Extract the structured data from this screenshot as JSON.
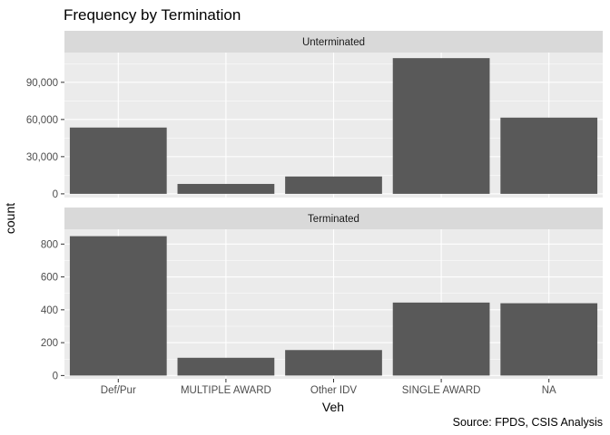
{
  "chart_data": {
    "type": "bar",
    "title": "Frequency by Termination",
    "xlabel": "Veh",
    "ylabel": "count",
    "caption": "Source: FPDS, CSIS Analysis",
    "categories": [
      "Def/Pur",
      "MULTIPLE AWARD",
      "Other IDV",
      "SINGLE AWARD",
      "NA"
    ],
    "colors": {
      "bar": "#595959",
      "panel": "#ebebeb",
      "strip": "#d9d9d9",
      "grid": "#ffffff"
    },
    "grid": true,
    "facets": [
      {
        "label": "Unterminated",
        "values": [
          53500,
          8000,
          14000,
          109500,
          61500
        ],
        "ylim": [
          -3000,
          114000
        ],
        "ticks": [
          0,
          30000,
          60000,
          90000
        ],
        "tick_labels": [
          "0",
          "30,000",
          "60,000",
          "90,000"
        ]
      },
      {
        "label": "Terminated",
        "values": [
          848,
          108,
          155,
          444,
          440
        ],
        "ylim": [
          -20,
          890
        ],
        "ticks": [
          0,
          200,
          400,
          600,
          800
        ],
        "tick_labels": [
          "0",
          "200",
          "400",
          "600",
          "800"
        ]
      }
    ]
  }
}
